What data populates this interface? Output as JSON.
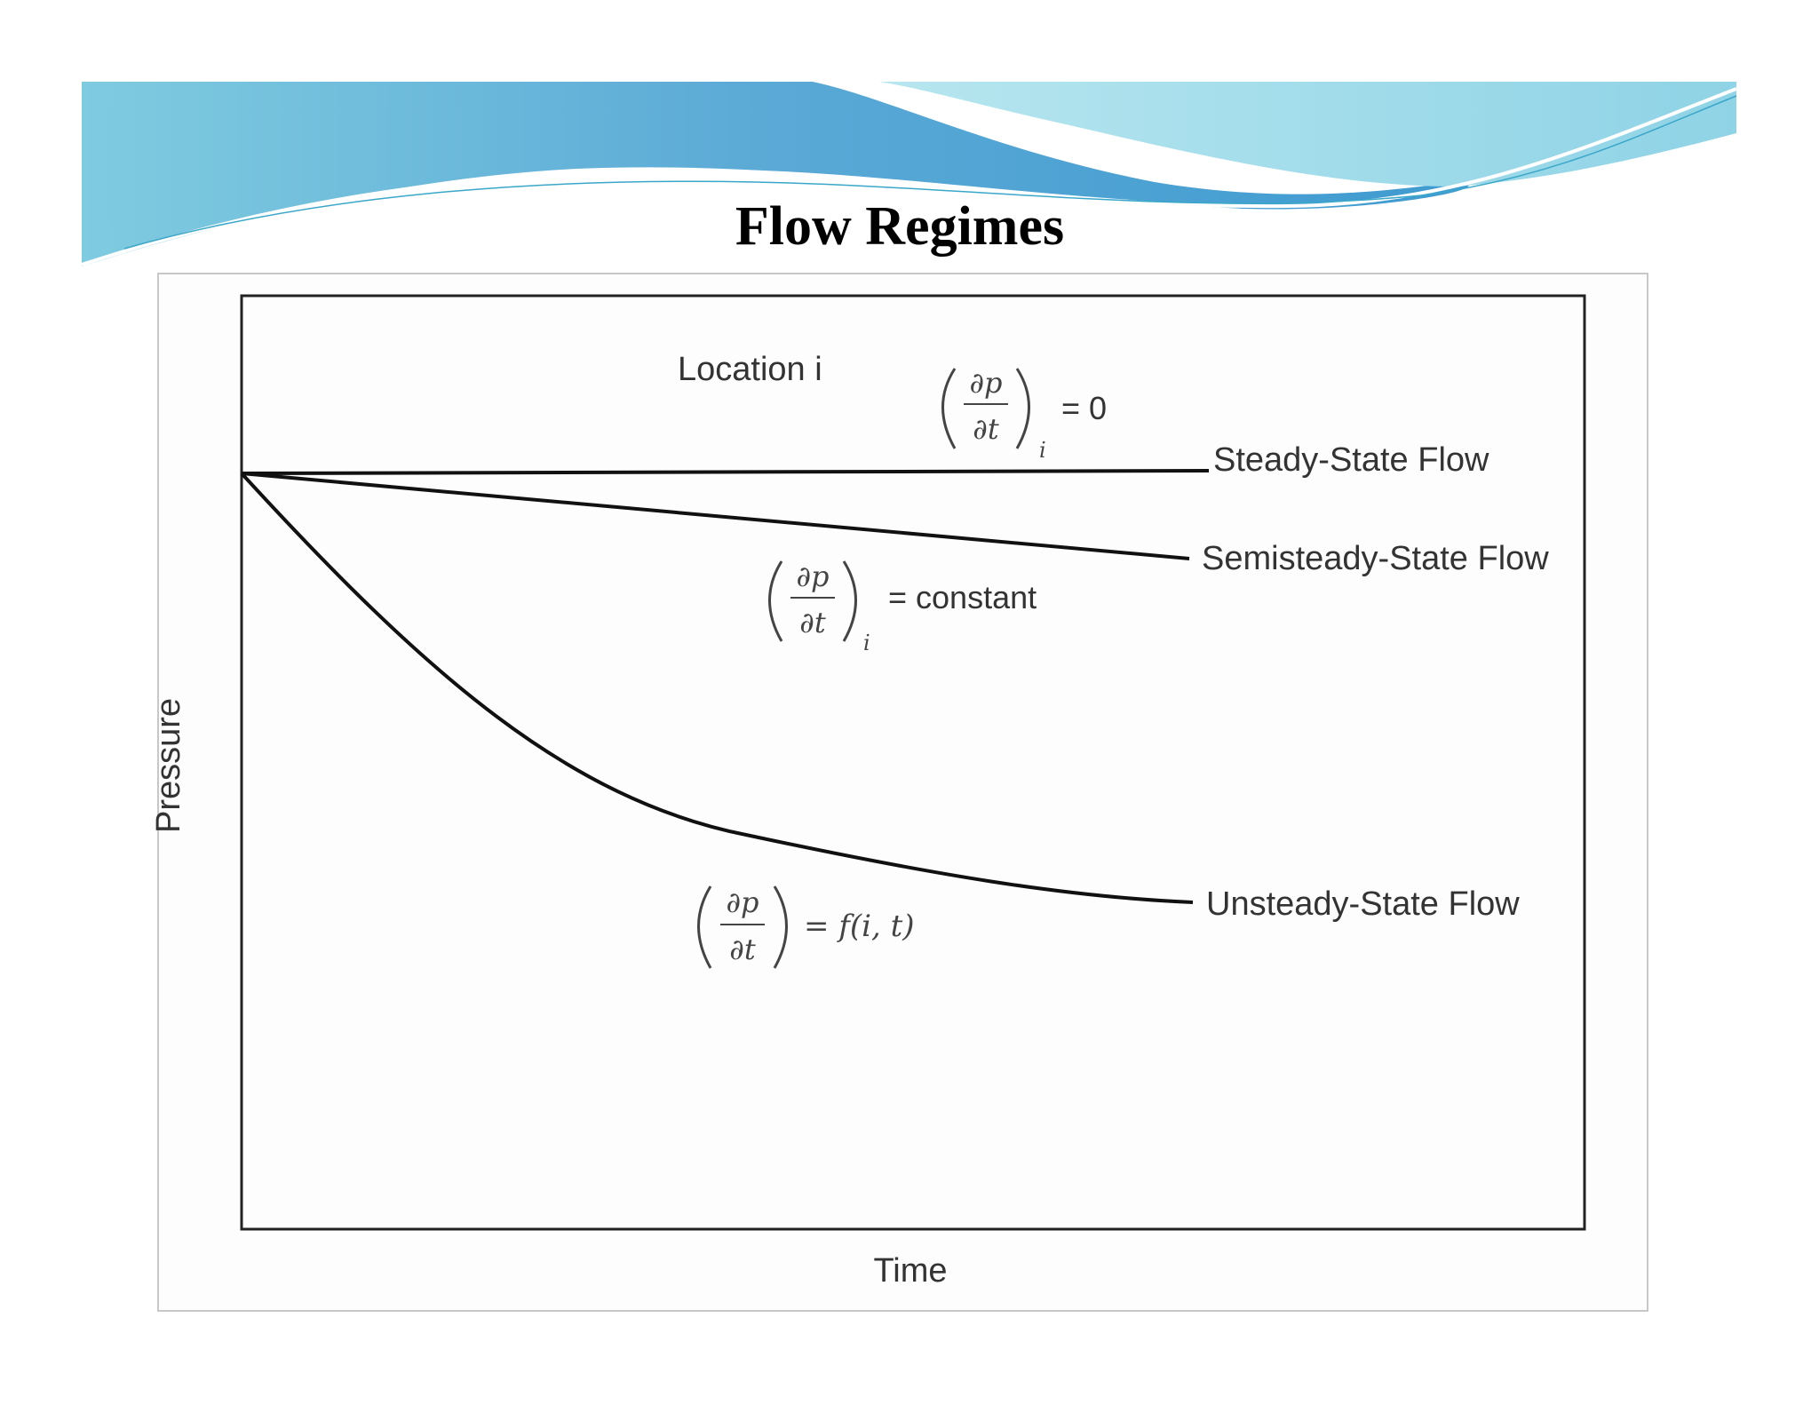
{
  "title": "Flow Regimes",
  "diagram": {
    "y_axis_label": "Pressure",
    "x_axis_label": "Time",
    "location_label": "Location i",
    "curves": [
      {
        "label": "Steady-State Flow",
        "equation": {
          "numerator": "∂p",
          "denominator": "∂t",
          "subscript": "i",
          "rhs": "= 0"
        }
      },
      {
        "label": "Semisteady-State Flow",
        "equation": {
          "numerator": "∂p",
          "denominator": "∂t",
          "subscript": "i",
          "rhs": "= constant"
        }
      },
      {
        "label": "Unsteady-State Flow",
        "equation": {
          "numerator": "∂p",
          "denominator": "∂t",
          "rhs": "= f(i, t)"
        }
      }
    ]
  }
}
